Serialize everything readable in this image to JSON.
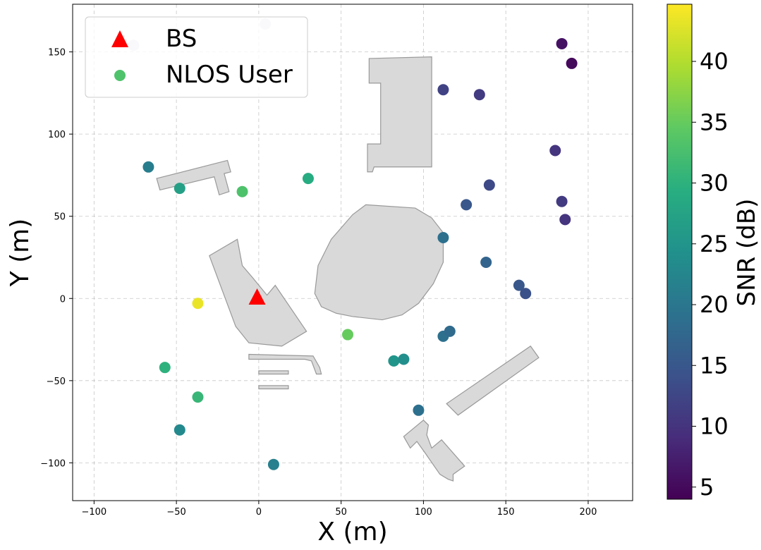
{
  "chart_data": {
    "type": "scatter",
    "xlabel": "X (m)",
    "ylabel": "Y (m)",
    "xlim": [
      -113,
      227
    ],
    "ylim": [
      -123,
      179
    ],
    "xticks": [
      -100,
      -50,
      0,
      50,
      100,
      150,
      200
    ],
    "yticks": [
      -100,
      -50,
      0,
      50,
      100,
      150
    ],
    "xtick_labels": [
      "−100",
      "−50",
      "0",
      "50",
      "100",
      "150",
      "200"
    ],
    "ytick_labels": [
      "−100",
      "−50",
      "0",
      "50",
      "100",
      "150"
    ],
    "grid": true,
    "legend": {
      "placement": "top-left",
      "entries": [
        {
          "label": "BS",
          "marker": "triangle",
          "color": "#ff0000"
        },
        {
          "label": "NLOS User",
          "marker": "circle",
          "color": "#4ec36b"
        }
      ]
    },
    "bs": {
      "x": -1,
      "y": 1
    },
    "colorbar": {
      "label": "SNR (dB)",
      "min": 4,
      "max": 44.7,
      "ticks": [
        5,
        10,
        15,
        20,
        25,
        30,
        35,
        40
      ],
      "colormap": "viridis"
    },
    "users": [
      {
        "x": -76,
        "y": 154,
        "snr": null
      },
      {
        "x": 4,
        "y": 167,
        "snr": null
      },
      {
        "x": -67,
        "y": 80,
        "snr": 21
      },
      {
        "x": -48,
        "y": 67,
        "snr": 27
      },
      {
        "x": -10,
        "y": 65,
        "snr": 33
      },
      {
        "x": 30,
        "y": 73,
        "snr": 29
      },
      {
        "x": -37,
        "y": -3,
        "snr": 43.5
      },
      {
        "x": 54,
        "y": -22,
        "snr": 35
      },
      {
        "x": -57,
        "y": -42,
        "snr": 30
      },
      {
        "x": -37,
        "y": -60,
        "snr": 31
      },
      {
        "x": -48,
        "y": -80,
        "snr": 23
      },
      {
        "x": 9,
        "y": -101,
        "snr": 21.5
      },
      {
        "x": 82,
        "y": -38,
        "snr": 25
      },
      {
        "x": 88,
        "y": -37,
        "snr": 24
      },
      {
        "x": 97,
        "y": -68,
        "snr": 19
      },
      {
        "x": 112,
        "y": -23,
        "snr": 19
      },
      {
        "x": 116,
        "y": -20,
        "snr": 18
      },
      {
        "x": 112,
        "y": 37,
        "snr": 19
      },
      {
        "x": 126,
        "y": 57,
        "snr": 15
      },
      {
        "x": 138,
        "y": 22,
        "snr": 17
      },
      {
        "x": 140,
        "y": 69,
        "snr": 13
      },
      {
        "x": 158,
        "y": 8,
        "snr": 15
      },
      {
        "x": 162,
        "y": 3,
        "snr": 14
      },
      {
        "x": 112,
        "y": 127,
        "snr": 12
      },
      {
        "x": 134,
        "y": 124,
        "snr": 11
      },
      {
        "x": 180,
        "y": 90,
        "snr": 10
      },
      {
        "x": 184,
        "y": 59,
        "snr": 11
      },
      {
        "x": 186,
        "y": 48,
        "snr": 10
      },
      {
        "x": 184,
        "y": 155,
        "snr": 6
      },
      {
        "x": 190,
        "y": 143,
        "snr": 5
      }
    ],
    "buildings": [
      [
        [
          -62,
          73
        ],
        [
          -19,
          84
        ],
        [
          -17,
          77
        ],
        [
          -21,
          76
        ],
        [
          -18,
          65
        ],
        [
          -24,
          63
        ],
        [
          -27,
          74
        ],
        [
          -60,
          66
        ]
      ],
      [
        [
          -30,
          26
        ],
        [
          -13,
          36
        ],
        [
          -10,
          20
        ],
        [
          -4,
          13
        ],
        [
          5,
          2
        ],
        [
          10,
          8
        ],
        [
          29,
          -20
        ],
        [
          14,
          -29
        ],
        [
          -6,
          -27
        ],
        [
          -14,
          -17
        ]
      ],
      [
        [
          67,
          146
        ],
        [
          105,
          147
        ],
        [
          105,
          80
        ],
        [
          70,
          80
        ],
        [
          69,
          77
        ],
        [
          66,
          77
        ],
        [
          66,
          94
        ],
        [
          74,
          94
        ],
        [
          74,
          131
        ],
        [
          67,
          131
        ]
      ],
      [
        [
          65,
          57
        ],
        [
          95,
          55
        ],
        [
          105,
          49
        ],
        [
          112,
          40
        ],
        [
          112,
          22
        ],
        [
          106,
          9
        ],
        [
          97,
          -3
        ],
        [
          87,
          -10
        ],
        [
          75,
          -13
        ],
        [
          57,
          -11
        ],
        [
          47,
          -9
        ],
        [
          38,
          -5
        ],
        [
          34,
          3
        ],
        [
          36,
          20
        ],
        [
          44,
          36
        ],
        [
          57,
          51
        ]
      ],
      [
        [
          -6,
          -34
        ],
        [
          33,
          -35
        ],
        [
          37,
          -42
        ],
        [
          38,
          -46
        ],
        [
          35,
          -46
        ],
        [
          32,
          -38
        ],
        [
          28,
          -37
        ],
        [
          -6,
          -37
        ]
      ],
      [
        [
          0,
          -44
        ],
        [
          18,
          -44
        ],
        [
          18,
          -46
        ],
        [
          0,
          -46
        ]
      ],
      [
        [
          0,
          -53
        ],
        [
          18,
          -53
        ],
        [
          18,
          -55
        ],
        [
          0,
          -55
        ]
      ],
      [
        [
          114,
          -64
        ],
        [
          165,
          -29
        ],
        [
          170,
          -36
        ],
        [
          121,
          -71
        ]
      ],
      [
        [
          88,
          -84
        ],
        [
          100,
          -74
        ],
        [
          103,
          -77
        ],
        [
          102,
          -83
        ],
        [
          105,
          -91
        ],
        [
          111,
          -86
        ],
        [
          125,
          -102
        ],
        [
          118,
          -107
        ],
        [
          118,
          -111
        ],
        [
          115,
          -110
        ],
        [
          110,
          -107
        ],
        [
          101,
          -94
        ],
        [
          96,
          -87
        ],
        [
          92,
          -91
        ]
      ]
    ]
  }
}
